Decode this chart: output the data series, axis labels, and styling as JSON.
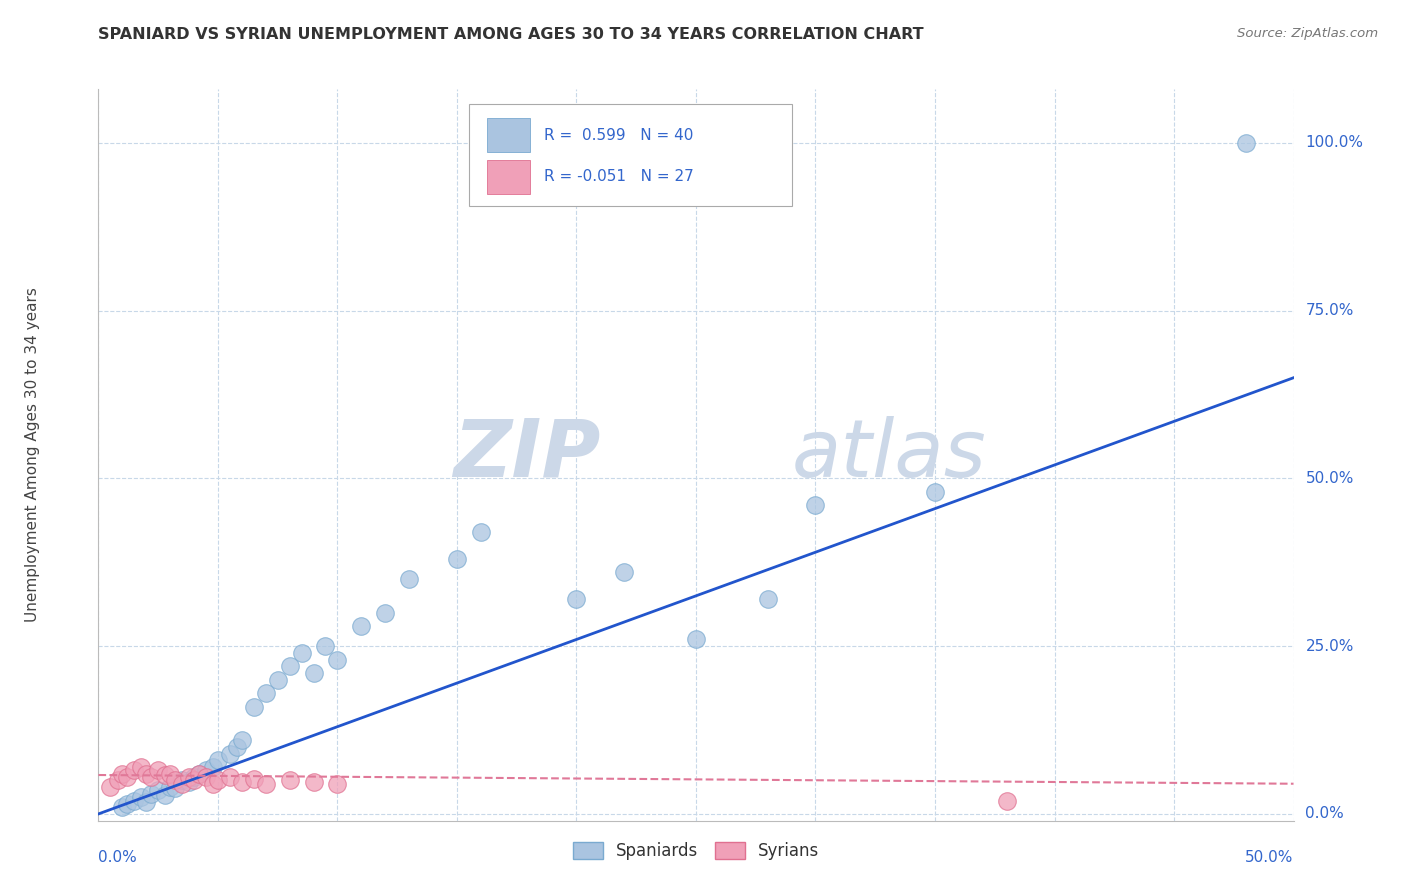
{
  "title": "SPANIARD VS SYRIAN UNEMPLOYMENT AMONG AGES 30 TO 34 YEARS CORRELATION CHART",
  "source": "Source: ZipAtlas.com",
  "ylabel": "Unemployment Among Ages 30 to 34 years",
  "ytick_labels": [
    "0.0%",
    "25.0%",
    "50.0%",
    "75.0%",
    "100.0%"
  ],
  "ytick_values": [
    0.0,
    0.25,
    0.5,
    0.75,
    1.0
  ],
  "xlim": [
    0,
    0.5
  ],
  "ylim": [
    -0.01,
    1.08
  ],
  "spaniard_R": 0.599,
  "spaniard_N": 40,
  "syrian_R": -0.051,
  "syrian_N": 27,
  "spaniard_color": "#aac4e0",
  "spaniard_edge_color": "#7aaad0",
  "syrian_color": "#f0a0b8",
  "syrian_edge_color": "#e07090",
  "spaniard_line_color": "#2255cc",
  "syrian_line_color": "#e07898",
  "grid_color": "#c8d8e8",
  "watermark_color": "#ccd8e8",
  "spaniard_x": [
    0.01,
    0.012,
    0.015,
    0.018,
    0.02,
    0.022,
    0.025,
    0.028,
    0.03,
    0.032,
    0.035,
    0.038,
    0.04,
    0.042,
    0.045,
    0.048,
    0.05,
    0.055,
    0.058,
    0.06,
    0.065,
    0.07,
    0.075,
    0.08,
    0.085,
    0.09,
    0.095,
    0.1,
    0.11,
    0.12,
    0.13,
    0.15,
    0.16,
    0.2,
    0.22,
    0.25,
    0.28,
    0.3,
    0.35,
    0.48
  ],
  "spaniard_y": [
    0.01,
    0.015,
    0.02,
    0.025,
    0.018,
    0.03,
    0.035,
    0.028,
    0.04,
    0.038,
    0.05,
    0.048,
    0.055,
    0.06,
    0.065,
    0.07,
    0.08,
    0.09,
    0.1,
    0.11,
    0.16,
    0.18,
    0.2,
    0.22,
    0.24,
    0.21,
    0.25,
    0.23,
    0.28,
    0.3,
    0.35,
    0.38,
    0.42,
    0.32,
    0.36,
    0.26,
    0.32,
    0.46,
    0.48,
    1.0
  ],
  "syrian_x": [
    0.005,
    0.008,
    0.01,
    0.012,
    0.015,
    0.018,
    0.02,
    0.022,
    0.025,
    0.028,
    0.03,
    0.032,
    0.035,
    0.038,
    0.04,
    0.042,
    0.045,
    0.048,
    0.05,
    0.055,
    0.06,
    0.065,
    0.07,
    0.08,
    0.09,
    0.1,
    0.38
  ],
  "syrian_y": [
    0.04,
    0.05,
    0.06,
    0.055,
    0.065,
    0.07,
    0.06,
    0.055,
    0.065,
    0.058,
    0.06,
    0.05,
    0.045,
    0.055,
    0.05,
    0.06,
    0.055,
    0.045,
    0.05,
    0.055,
    0.048,
    0.052,
    0.045,
    0.05,
    0.048,
    0.045,
    0.02
  ]
}
